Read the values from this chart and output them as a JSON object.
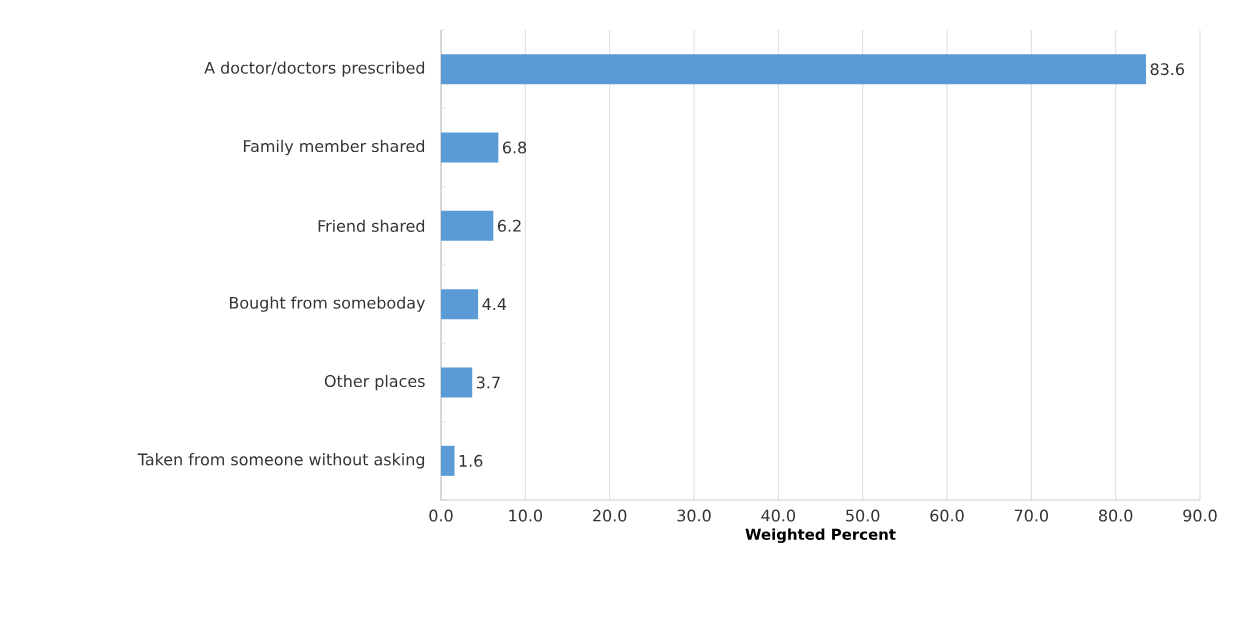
{
  "chart_data": {
    "type": "bar",
    "orientation": "horizontal",
    "xlabel": "Weighted Percent",
    "categories": [
      "A doctor/doctors prescribed",
      "Family member shared",
      "Friend shared",
      "Bought from someboday",
      "Other places",
      "Taken from someone without asking"
    ],
    "values": [
      83.6,
      6.8,
      6.2,
      4.4,
      3.7,
      1.6
    ],
    "color": "#5b9bd5",
    "data_labels": true,
    "grid": "x",
    "xlim": [
      0,
      90
    ],
    "xticks": [
      {
        "value": 0,
        "label": "0.0"
      },
      {
        "value": 10,
        "label": "10.0"
      },
      {
        "value": 20,
        "label": "20.0"
      },
      {
        "value": 30,
        "label": "30.0"
      },
      {
        "value": 40,
        "label": "40.0"
      },
      {
        "value": 50,
        "label": "50.0"
      },
      {
        "value": 60,
        "label": "60.0"
      },
      {
        "value": 70,
        "label": "70.0"
      },
      {
        "value": 80,
        "label": "80.0"
      },
      {
        "value": 90,
        "label": "90.0"
      }
    ]
  }
}
